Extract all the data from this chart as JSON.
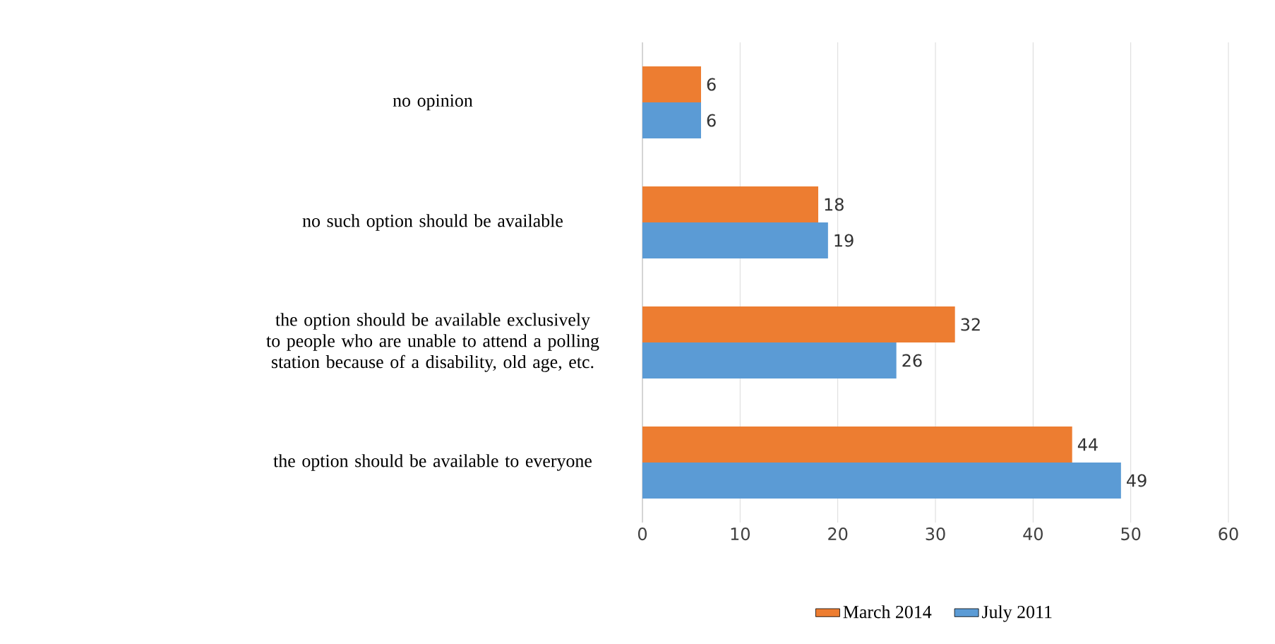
{
  "chart_data": {
    "type": "bar",
    "orientation": "horizontal",
    "categories": [
      "no opinion",
      "no such option should be available",
      "the option should be available exclusively to people who are unable to attend a polling station because of a disability, old age, etc.",
      "the option should be available to everyone"
    ],
    "series": [
      {
        "name": "March 2014",
        "color": "#ed7d31",
        "values": [
          6,
          18,
          32,
          44
        ]
      },
      {
        "name": "July 2011",
        "color": "#5b9bd5",
        "values": [
          6,
          19,
          26,
          49
        ]
      }
    ],
    "xlim": [
      0,
      60
    ],
    "xticks": [
      0,
      10,
      20,
      30,
      40,
      50,
      60
    ],
    "grid": "x",
    "legend": "bottom",
    "data_labels": true
  }
}
